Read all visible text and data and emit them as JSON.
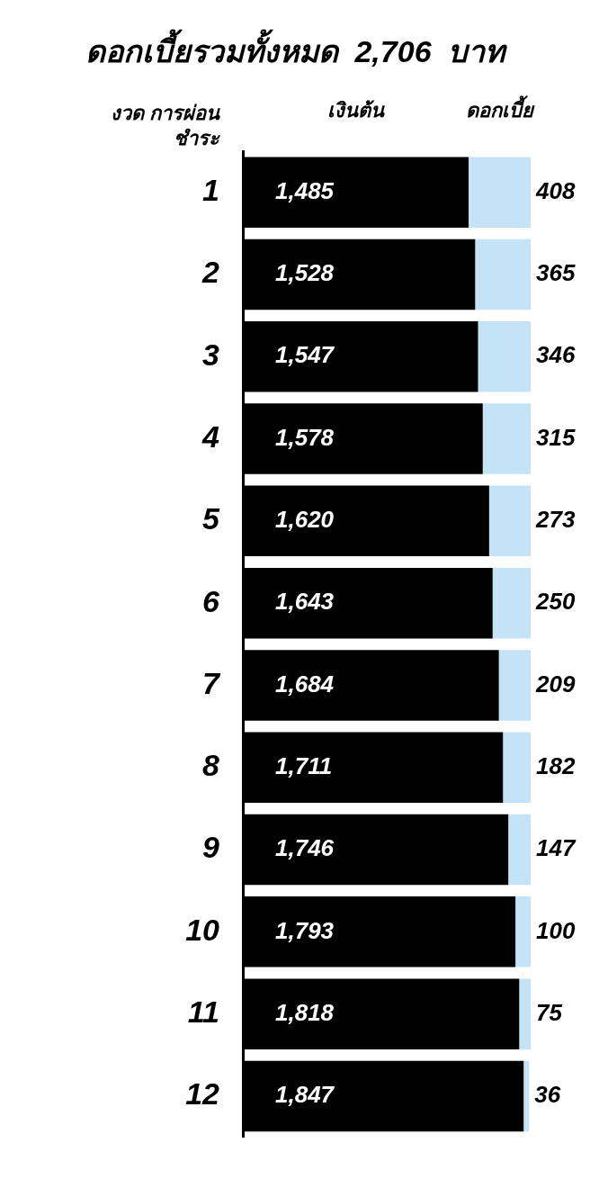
{
  "chart_data": {
    "type": "bar",
    "orientation": "horizontal",
    "stacked": true,
    "title": "ดอกเบี้ยรวมทั้งหมด  2,706  บาท",
    "ylabel": "งวด การผ่อนชำระ",
    "categories": [
      "1",
      "2",
      "3",
      "4",
      "5",
      "6",
      "7",
      "8",
      "9",
      "10",
      "11",
      "12"
    ],
    "series": [
      {
        "name": "เงินต้น",
        "color": "#000000",
        "values": [
          1485,
          1528,
          1547,
          1578,
          1620,
          1643,
          1684,
          1711,
          1746,
          1793,
          1818,
          1847
        ],
        "value_labels": [
          "1,485",
          "1,528",
          "1,547",
          "1,578",
          "1,620",
          "1,643",
          "1,684",
          "1,711",
          "1,746",
          "1,793",
          "1,818",
          "1,847"
        ]
      },
      {
        "name": "ดอกเบี้ย",
        "color": "#c5e3f7",
        "values": [
          408,
          365,
          346,
          315,
          273,
          250,
          209,
          182,
          147,
          100,
          75,
          36
        ],
        "value_labels": [
          "408",
          "365",
          "346",
          "315",
          "273",
          "250",
          "209",
          "182",
          "147",
          "100",
          "75",
          "36"
        ]
      }
    ],
    "legend": "top",
    "tick_labels": "y"
  }
}
